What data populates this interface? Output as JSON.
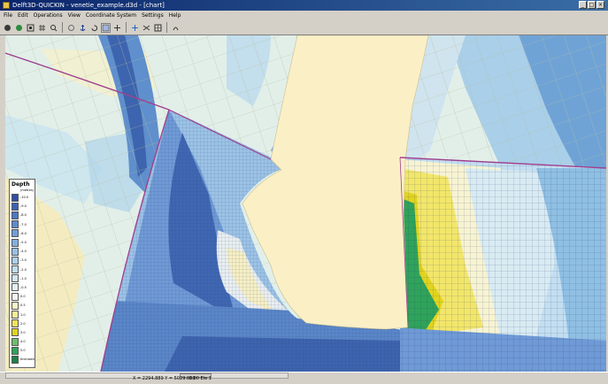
{
  "window": {
    "title": "Delft3D-QUICKIN - venetie_example.d3d - [chart]"
  },
  "menu": [
    "File",
    "Edit",
    "Operations",
    "View",
    "Coordinate System",
    "Settings",
    "Help"
  ],
  "toolbar": {
    "icons": [
      "open-icon",
      "save-icon",
      "zoom-extent-icon",
      "grid-icon",
      "zoom-icon",
      "select-icon",
      "anchor-icon",
      "rotate-icon",
      "grid-edit-icon",
      "refine-icon",
      "move-icon",
      "split-icon",
      "measure-icon",
      "pan-icon"
    ],
    "active_index": 8
  },
  "legend": {
    "title": "Depth",
    "unit": "(metres)",
    "levels": [
      {
        "label": "-10.0",
        "color": "#2f4fa2"
      },
      {
        "label": "-9.0",
        "color": "#3a62b5"
      },
      {
        "label": "-8.0",
        "color": "#4a78c4"
      },
      {
        "label": "-7.0",
        "color": "#5b8ccf"
      },
      {
        "label": "-6.0",
        "color": "#6e9fd8"
      },
      {
        "label": "-5.0",
        "color": "#82b0df"
      },
      {
        "label": "-4.0",
        "color": "#97c1e6"
      },
      {
        "label": "-3.0",
        "color": "#abd0ec"
      },
      {
        "label": "-2.0",
        "color": "#bfdcef"
      },
      {
        "label": "-1.0",
        "color": "#d3e7f2"
      },
      {
        "label": "-0.5",
        "color": "#e4f0f3"
      },
      {
        "label": "0.0",
        "color": "#f4f6ee"
      },
      {
        "label": "0.5",
        "color": "#f9f3c6"
      },
      {
        "label": "1.0",
        "color": "#f6ec95"
      },
      {
        "label": "2.0",
        "color": "#f0e35a"
      },
      {
        "label": "3.0",
        "color": "#e2d41e"
      },
      {
        "label": "4.0",
        "color": "#6fbf6a"
      },
      {
        "label": "5.0",
        "color": "#2fa35a"
      },
      {
        "label": "Unknown",
        "color": "#1f7f47"
      }
    ]
  },
  "status": {
    "coords": "X = 2294.889  Y = 5029.000",
    "depth": "-1.00   Ele 1"
  },
  "colors": {
    "land": "#fbefc6",
    "grid_boundary": "#a0408f",
    "deep_channel": "#3d64ae",
    "shallow_green": "#2fa35a",
    "coarse_grid": "#c8d2b8"
  }
}
